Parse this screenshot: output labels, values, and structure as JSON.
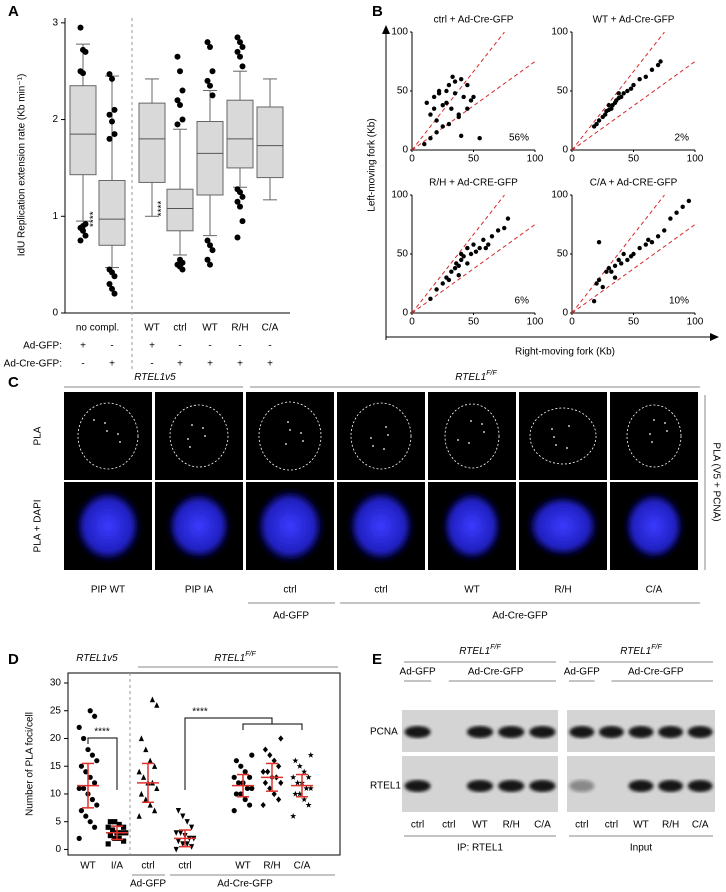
{
  "panel_labels": [
    "A",
    "B",
    "C",
    "D",
    "E"
  ],
  "chart_data": [
    {
      "type": "box",
      "ylabel": "IdU Replication extension rate (Kb min⁻¹)",
      "ylim": [
        0,
        3.05
      ],
      "yticks": [
        0,
        1,
        2,
        3
      ],
      "color": "#d9d9d9",
      "categories": [
        "no compl.",
        null,
        "WT",
        "ctrl",
        "WT",
        "R/H",
        "C/A"
      ],
      "row_labels": [
        "Ad-GFP:",
        "Ad-Cre-GFP:"
      ],
      "rows": [
        [
          "+",
          "-",
          "+",
          "-",
          "-",
          "-",
          "-"
        ],
        [
          "-",
          "+",
          "-",
          "+",
          "+",
          "+",
          "+"
        ]
      ],
      "boxes": [
        {
          "whislo": 0.95,
          "q1": 1.43,
          "med": 1.85,
          "q3": 2.35,
          "whishi": 2.78,
          "fliers": [
            2.95,
            2.72,
            2.7,
            2.5,
            2.48,
            0.92,
            0.88,
            0.85,
            0.8,
            0.75,
            0.9
          ]
        },
        {
          "whislo": 0.47,
          "q1": 0.7,
          "med": 0.97,
          "q3": 1.37,
          "whishi": 2.45,
          "fliers": [
            2.47,
            2.42,
            2.1,
            2.05,
            1.98,
            1.85,
            1.8,
            0.42,
            0.38,
            0.3,
            0.25,
            0.2,
            0.45
          ],
          "sig": "****"
        },
        {
          "whislo": 1.0,
          "q1": 1.35,
          "med": 1.8,
          "q3": 2.17,
          "whishi": 2.42,
          "fliers": []
        },
        {
          "whislo": 0.6,
          "q1": 0.85,
          "med": 1.08,
          "q3": 1.28,
          "whishi": 1.9,
          "fliers": [
            2.65,
            2.5,
            2.3,
            2.2,
            2.15,
            2.0,
            1.95,
            0.55,
            0.52,
            0.5,
            0.48,
            0.45
          ],
          "sig": "****"
        },
        {
          "whislo": 0.8,
          "q1": 1.22,
          "med": 1.65,
          "q3": 1.98,
          "whishi": 2.3,
          "fliers": [
            2.8,
            2.75,
            2.5,
            2.4,
            2.35,
            2.25,
            0.75,
            0.7,
            0.65,
            0.55,
            0.5
          ]
        },
        {
          "whislo": 1.3,
          "q1": 1.5,
          "med": 1.8,
          "q3": 2.2,
          "whishi": 2.5,
          "fliers": [
            2.85,
            2.8,
            2.75,
            2.7,
            2.65,
            2.55,
            1.28,
            1.25,
            1.2,
            1.15,
            1.1,
            0.95,
            0.78
          ]
        },
        {
          "whislo": 1.17,
          "q1": 1.4,
          "med": 1.73,
          "q3": 2.13,
          "whishi": 2.42,
          "fliers": []
        }
      ]
    },
    {
      "type": "scatter",
      "title": "ctrl + Ad-Cre-GFP",
      "annotation": "56%",
      "xlim": [
        0,
        100
      ],
      "ylim": [
        0,
        100
      ],
      "xticks": [
        0,
        50,
        100
      ],
      "yticks": [
        0,
        50,
        100
      ],
      "ref_slopes": [
        1.33,
        0.75
      ],
      "ref_color": "#d62728",
      "point_color": "#000000",
      "x": [
        10,
        12,
        15,
        18,
        20,
        22,
        25,
        28,
        30,
        32,
        35,
        38,
        40,
        42,
        45,
        48,
        15,
        20,
        25,
        30,
        35,
        40,
        18,
        28,
        38,
        50,
        55,
        22,
        33,
        45
      ],
      "y": [
        5,
        40,
        30,
        45,
        15,
        50,
        20,
        40,
        55,
        35,
        48,
        30,
        60,
        45,
        55,
        42,
        10,
        25,
        38,
        22,
        58,
        12,
        35,
        50,
        28,
        45,
        10,
        48,
        62,
        35
      ]
    },
    {
      "type": "scatter",
      "title": "WT + Ad-Cre-GFP",
      "annotation": "2%",
      "xlim": [
        0,
        100
      ],
      "ylim": [
        0,
        100
      ],
      "xticks": [
        0,
        50,
        100
      ],
      "yticks": [
        0,
        50,
        100
      ],
      "ref_slopes": [
        1.33,
        0.75
      ],
      "ref_color": "#d62728",
      "point_color": "#000000",
      "x": [
        18,
        20,
        22,
        25,
        27,
        28,
        30,
        32,
        33,
        35,
        36,
        38,
        40,
        42,
        45,
        48,
        50,
        55,
        60,
        65,
        70,
        72,
        30,
        38
      ],
      "y": [
        20,
        22,
        25,
        28,
        30,
        33,
        34,
        35,
        38,
        40,
        42,
        44,
        45,
        48,
        50,
        52,
        55,
        60,
        62,
        68,
        72,
        75,
        38,
        48
      ]
    },
    {
      "type": "scatter",
      "title": "R/H + Ad-CRE-GFP",
      "annotation": "6%",
      "xlim": [
        0,
        100
      ],
      "ylim": [
        0,
        100
      ],
      "xticks": [
        0,
        50,
        100
      ],
      "yticks": [
        0,
        50,
        100
      ],
      "ref_slopes": [
        1.33,
        0.75
      ],
      "ref_color": "#d62728",
      "point_color": "#000000",
      "x": [
        15,
        20,
        25,
        28,
        30,
        32,
        35,
        36,
        38,
        40,
        40,
        42,
        45,
        45,
        48,
        50,
        52,
        55,
        58,
        60,
        62,
        65,
        70,
        75,
        78,
        38
      ],
      "y": [
        12,
        20,
        25,
        30,
        28,
        35,
        38,
        42,
        40,
        45,
        50,
        48,
        42,
        55,
        50,
        58,
        52,
        55,
        62,
        55,
        58,
        65,
        70,
        72,
        80,
        32
      ]
    },
    {
      "type": "scatter",
      "title": "C/A + Ad-CRE-GFP",
      "annotation": "10%",
      "xlim": [
        0,
        100
      ],
      "ylim": [
        0,
        100
      ],
      "xticks": [
        0,
        50,
        100
      ],
      "yticks": [
        0,
        50,
        100
      ],
      "ref_slopes": [
        1.33,
        0.75
      ],
      "ref_color": "#d62728",
      "point_color": "#000000",
      "x": [
        18,
        20,
        22,
        25,
        28,
        30,
        32,
        35,
        38,
        40,
        42,
        45,
        48,
        50,
        55,
        60,
        62,
        65,
        70,
        75,
        80,
        85,
        90,
        95,
        22,
        35
      ],
      "y": [
        10,
        25,
        28,
        22,
        35,
        38,
        35,
        40,
        45,
        42,
        50,
        45,
        48,
        50,
        55,
        58,
        62,
        60,
        65,
        70,
        80,
        85,
        90,
        95,
        60,
        30
      ]
    },
    {
      "type": "dot",
      "ylabel": "Number of PLA foci/cell",
      "ylim": [
        -1,
        31.8
      ],
      "yticks": [
        0,
        5,
        10,
        15,
        20,
        25,
        30
      ],
      "mean_color": "#e0322d",
      "headers": [
        {
          "text": "RTEL1v5"
        },
        {
          "text": "RTEL1",
          "sup": "F/F"
        }
      ],
      "categories": [
        "WT",
        "I/A",
        "ctrl",
        "ctrl",
        "WT",
        "R/H",
        "C/A"
      ],
      "treatments": [
        "Ad-GFP",
        "Ad-Cre-GFP"
      ],
      "sig": [
        "****",
        "****"
      ],
      "markers": [
        "circle",
        "square",
        "triangle",
        "triangle-down",
        "circle",
        "diamond",
        "star"
      ],
      "mean": [
        11.5,
        3,
        12,
        2,
        11.5,
        13,
        11.5
      ],
      "sd": [
        4,
        1.2,
        3.5,
        1.5,
        2,
        2.5,
        2
      ],
      "values": [
        [
          2,
          4,
          5,
          6,
          7,
          8,
          9,
          10,
          11,
          11,
          12,
          13,
          14,
          15,
          16,
          17,
          18,
          20,
          22,
          24,
          25
        ],
        [
          1,
          1.5,
          2,
          2,
          2.5,
          3,
          3,
          3,
          3.5,
          4,
          4,
          4.5,
          5,
          5
        ],
        [
          6,
          7,
          8,
          9,
          10,
          11,
          12,
          12,
          13,
          14,
          15,
          16,
          18,
          20,
          26,
          27
        ],
        [
          0,
          0.5,
          1,
          1,
          1.5,
          2,
          2,
          2.5,
          3,
          3,
          4,
          5,
          6,
          7
        ],
        [
          7,
          8,
          9,
          10,
          10,
          11,
          11,
          12,
          12,
          13,
          13,
          14,
          15,
          16,
          17
        ],
        [
          8,
          9,
          10,
          11,
          12,
          12,
          13,
          13,
          14,
          14,
          15,
          16,
          17,
          18,
          20
        ],
        [
          6,
          8,
          9,
          10,
          10,
          11,
          11,
          12,
          12,
          13,
          13,
          14,
          15,
          16,
          17
        ]
      ]
    }
  ],
  "shared_b": {
    "ylabel": "Left-moving fork (Kb)",
    "xlabel": "Right-moving fork (Kb)"
  },
  "panel_c": {
    "headers": [
      {
        "text": "RTEL1v5"
      },
      {
        "text": "RTEL1",
        "sup": "F/F"
      }
    ],
    "row_labels": [
      "PLA",
      "PLA + DAPI"
    ],
    "side_label": "PLA (V5 + PCNA)",
    "columns": [
      "PIP WT",
      "PIP IA",
      "ctrl",
      "ctrl",
      "WT",
      "R/H",
      "C/A"
    ],
    "treatments": [
      "Ad-GFP",
      "Ad-Cre-GFP"
    ]
  },
  "panel_e": {
    "headers": [
      {
        "text": "RTEL1",
        "sup": "F/F"
      },
      {
        "text": "RTEL1",
        "sup": "F/F"
      }
    ],
    "treatments": [
      [
        "Ad-GFP",
        "Ad-Cre-GFP"
      ],
      [
        "Ad-GFP",
        "Ad-Cre-GFP"
      ]
    ],
    "rows": [
      "PCNA",
      "RTEL1"
    ],
    "lanes": [
      [
        "ctrl",
        "ctrl",
        "WT",
        "R/H",
        "C/A"
      ],
      [
        "ctrl",
        "ctrl",
        "WT",
        "R/H",
        "C/A"
      ]
    ],
    "blots": [
      "IP: RTEL1",
      "Input"
    ]
  }
}
